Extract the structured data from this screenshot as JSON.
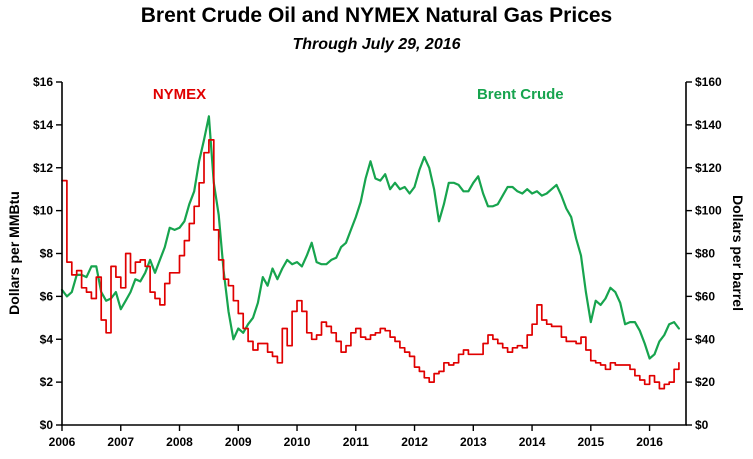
{
  "chart_data": {
    "type": "line",
    "title": "Brent Crude Oil and NYMEX Natural Gas Prices",
    "subtitle": "Through July 29, 2016",
    "grid": false,
    "legend_position": "inline-annotations",
    "x_axis": {
      "min": 2006,
      "max": 2016.62,
      "tick_years": [
        2006,
        2007,
        2008,
        2009,
        2010,
        2011,
        2012,
        2013,
        2014,
        2015,
        2016
      ]
    },
    "left_axis": {
      "label": "Dollars per MMBtu",
      "min": 0,
      "max": 16,
      "tick_step": 2,
      "prefix": "$"
    },
    "right_axis": {
      "label": "Dollars per barrel",
      "min": 0,
      "max": 160,
      "tick_step": 20,
      "prefix": "$"
    },
    "series": [
      {
        "name": "Brent Crude",
        "axis": "right",
        "color": "#17a44e",
        "style": "line",
        "line_width": 2.2,
        "label_pos": {
          "x": 2013.8,
          "value": 152
        },
        "x_start": 2006.0,
        "x_step_years": 0.0833333,
        "values": [
          63,
          60,
          62,
          70,
          70,
          69,
          74,
          74,
          62,
          58,
          59,
          62,
          54,
          58,
          62,
          68,
          67,
          71,
          77,
          71,
          77,
          83,
          92,
          91,
          92,
          95,
          103,
          109,
          123,
          133,
          144,
          113,
          98,
          72,
          53,
          40,
          45,
          43,
          47,
          50,
          57,
          69,
          65,
          73,
          68,
          73,
          77,
          75,
          76,
          74,
          79,
          85,
          76,
          75,
          75,
          77,
          78,
          83,
          85,
          91,
          97,
          104,
          115,
          123,
          115,
          114,
          117,
          110,
          113,
          110,
          111,
          108,
          111,
          119,
          125,
          120,
          110,
          95,
          103,
          113,
          113,
          112,
          109,
          109,
          113,
          116,
          108,
          102,
          102,
          103,
          107,
          111,
          111,
          109,
          108,
          110,
          108,
          109,
          107,
          108,
          110,
          112,
          107,
          101,
          97,
          87,
          79,
          62,
          48,
          58,
          56,
          59,
          64,
          62,
          57,
          47,
          48,
          48,
          44,
          38,
          31,
          33,
          39,
          42,
          47,
          48,
          45
        ]
      },
      {
        "name": "NYMEX",
        "axis": "left",
        "color": "#e00000",
        "style": "step",
        "line_width": 1.7,
        "label_pos": {
          "x": 2008.0,
          "value": 15.2
        },
        "x_start": 2006.0,
        "x_step_years": 0.0833333,
        "values": [
          11.4,
          7.6,
          7.0,
          7.2,
          6.4,
          6.2,
          5.9,
          6.9,
          4.9,
          4.3,
          7.4,
          6.9,
          6.4,
          8.0,
          7.1,
          7.6,
          7.7,
          7.4,
          6.2,
          5.9,
          5.6,
          6.6,
          7.1,
          7.1,
          7.9,
          8.6,
          9.4,
          10.2,
          11.3,
          12.7,
          13.3,
          9.1,
          7.7,
          6.8,
          6.5,
          5.8,
          5.2,
          4.5,
          3.9,
          3.5,
          3.8,
          3.8,
          3.4,
          3.2,
          2.9,
          4.5,
          3.7,
          5.3,
          5.8,
          5.3,
          4.3,
          4.0,
          4.2,
          4.8,
          4.6,
          4.3,
          3.9,
          3.4,
          3.7,
          4.3,
          4.5,
          4.1,
          4.0,
          4.2,
          4.3,
          4.5,
          4.4,
          4.1,
          3.9,
          3.6,
          3.4,
          3.2,
          2.7,
          2.5,
          2.2,
          2.0,
          2.4,
          2.5,
          2.9,
          2.8,
          2.9,
          3.3,
          3.5,
          3.3,
          3.3,
          3.3,
          3.8,
          4.2,
          4.0,
          3.8,
          3.6,
          3.4,
          3.6,
          3.7,
          3.6,
          4.2,
          4.7,
          5.6,
          4.9,
          4.7,
          4.6,
          4.6,
          4.1,
          3.9,
          3.9,
          3.8,
          4.1,
          3.5,
          3.0,
          2.9,
          2.8,
          2.6,
          2.9,
          2.8,
          2.8,
          2.8,
          2.6,
          2.3,
          2.1,
          1.9,
          2.3,
          2.0,
          1.7,
          1.9,
          2.0,
          2.6,
          2.9
        ]
      }
    ]
  }
}
